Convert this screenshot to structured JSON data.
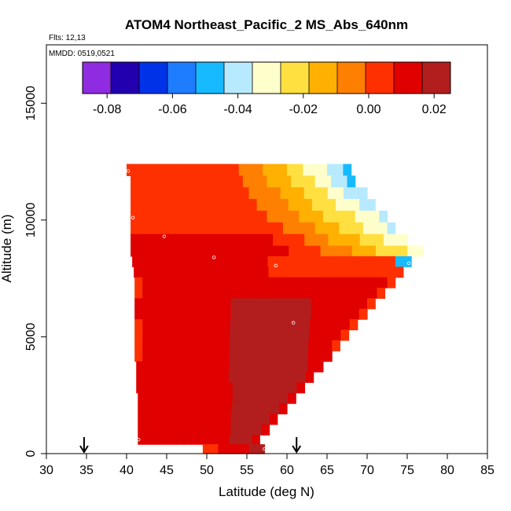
{
  "chart_data": {
    "type": "heatmap",
    "title": "ATOM4 Northeast_Pacific_2 MS_Abs_640nm",
    "notes": {
      "flights": "Flts: 12,13",
      "dates": "MMDD: 0519,0521"
    },
    "xlabel": "Latitude (deg N)",
    "ylabel": "Altitude (m)",
    "xlim": [
      30,
      85
    ],
    "ylim": [
      0,
      17500
    ],
    "x_ticks": [
      30,
      35,
      40,
      45,
      50,
      55,
      60,
      65,
      70,
      75,
      80,
      85
    ],
    "y_ticks": [
      0,
      5000,
      10000,
      15000
    ],
    "colorbar": {
      "range": [
        -0.0875,
        0.025
      ],
      "ticks": [
        -0.08,
        -0.06,
        -0.04,
        -0.02,
        0.0,
        0.02
      ],
      "tick_labels": [
        "-0.08",
        "-0.06",
        "-0.04",
        "-0.02",
        "0.00",
        "0.02"
      ],
      "colors": [
        "#8f2be0",
        "#2200b0",
        "#0033e8",
        "#1e7dff",
        "#18baff",
        "#b8eaff",
        "#ffffcc",
        "#ffe040",
        "#ffb000",
        "#ff8000",
        "#ff3000",
        "#e00000",
        "#b21e1e"
      ]
    },
    "arrows_lat": [
      34.7,
      61.2
    ],
    "bands": [
      {
        "y0": 11900,
        "y1": 12400,
        "x0": 40.0,
        "x1": 68.0
      },
      {
        "y0": 11400,
        "y1": 11900,
        "x0": 40.5,
        "x1": 68.5
      },
      {
        "y0": 10900,
        "y1": 11400,
        "x0": 40.5,
        "x1": 70.0
      },
      {
        "y0": 10400,
        "y1": 10900,
        "x0": 40.5,
        "x1": 71.0
      },
      {
        "y0": 9900,
        "y1": 10400,
        "x0": 40.5,
        "x1": 72.5
      },
      {
        "y0": 9400,
        "y1": 9900,
        "x0": 40.5,
        "x1": 73.5
      },
      {
        "y0": 8900,
        "y1": 9400,
        "x0": 40.5,
        "x1": 75.0
      },
      {
        "y0": 8450,
        "y1": 8900,
        "x0": 40.5,
        "x1": 77.0
      },
      {
        "y0": 8000,
        "y1": 8450,
        "x0": 40.7,
        "x1": 75.5
      },
      {
        "y0": 7550,
        "y1": 8000,
        "x0": 40.9,
        "x1": 74.5
      },
      {
        "y0": 7100,
        "y1": 7550,
        "x0": 41.0,
        "x1": 73.5
      },
      {
        "y0": 6650,
        "y1": 7100,
        "x0": 41.0,
        "x1": 72.2
      },
      {
        "y0": 6200,
        "y1": 6650,
        "x0": 41.0,
        "x1": 71.0
      },
      {
        "y0": 5750,
        "y1": 6200,
        "x0": 41.0,
        "x1": 70.0
      },
      {
        "y0": 5300,
        "y1": 5750,
        "x0": 41.0,
        "x1": 68.8
      },
      {
        "y0": 4850,
        "y1": 5300,
        "x0": 41.0,
        "x1": 67.7
      },
      {
        "y0": 4400,
        "y1": 4850,
        "x0": 41.0,
        "x1": 66.6
      },
      {
        "y0": 3950,
        "y1": 4400,
        "x0": 41.0,
        "x1": 65.6
      },
      {
        "y0": 3500,
        "y1": 3950,
        "x0": 41.2,
        "x1": 64.5
      },
      {
        "y0": 3050,
        "y1": 3500,
        "x0": 41.2,
        "x1": 63.3
      },
      {
        "y0": 2600,
        "y1": 3050,
        "x0": 41.2,
        "x1": 62.2
      },
      {
        "y0": 2150,
        "y1": 2600,
        "x0": 41.4,
        "x1": 61.1
      },
      {
        "y0": 1700,
        "y1": 2150,
        "x0": 41.4,
        "x1": 60.0
      },
      {
        "y0": 1250,
        "y1": 1700,
        "x0": 41.4,
        "x1": 58.8
      },
      {
        "y0": 800,
        "y1": 1250,
        "x0": 41.4,
        "x1": 57.8
      },
      {
        "y0": 400,
        "y1": 800,
        "x0": 41.4,
        "x1": 56.6
      },
      {
        "y0": 0,
        "y1": 400,
        "x0": 49.5,
        "x1": 57.2
      }
    ],
    "samples": [
      {
        "lat": 40.2,
        "alt": 12100
      },
      {
        "lat": 40.8,
        "alt": 10100
      },
      {
        "lat": 44.7,
        "alt": 9300
      },
      {
        "lat": 50.9,
        "alt": 8400
      },
      {
        "lat": 58.6,
        "alt": 8050
      },
      {
        "lat": 60.8,
        "alt": 5600
      },
      {
        "lat": 75.2,
        "alt": 8150
      },
      {
        "lat": 76.5,
        "alt": 8800
      },
      {
        "lat": 41.5,
        "alt": 600
      },
      {
        "lat": 57.2,
        "alt": 200
      }
    ]
  }
}
